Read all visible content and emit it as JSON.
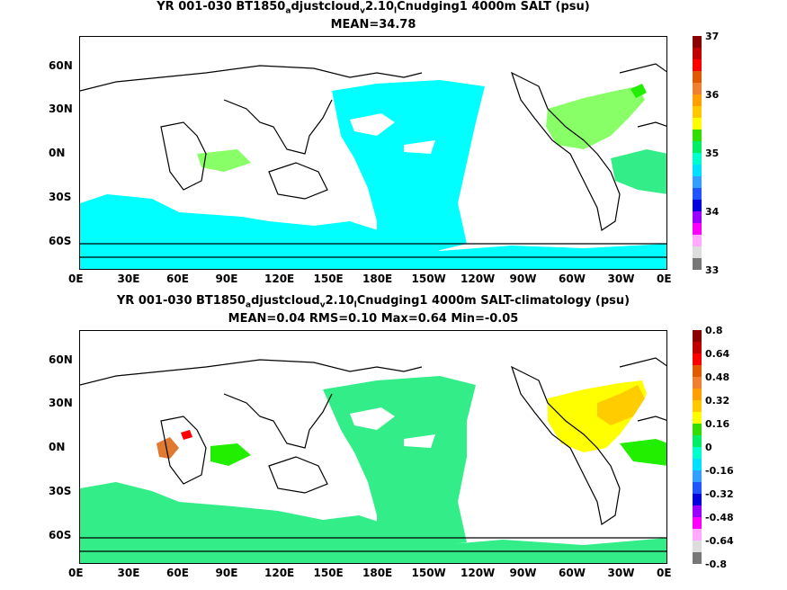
{
  "panels": [
    {
      "title_parts": [
        "YR 001-030 BT1850",
        "a",
        "djustcloud",
        "v",
        "2.10",
        "l",
        "Cnudging1 4000m SALT (psu)"
      ],
      "subtitle": "MEAN=34.78",
      "colorbar": {
        "labels": [
          "37",
          "36",
          "35",
          "34",
          "33"
        ],
        "colors": [
          "#8b0000",
          "#c00000",
          "#ff0000",
          "#e05a00",
          "#f08030",
          "#ffa000",
          "#ffc800",
          "#ffff00",
          "#33dd00",
          "#00ee66",
          "#00ffcc",
          "#00e0ff",
          "#33a0ff",
          "#2255ff",
          "#0000dd",
          "#9900ff",
          "#ff00ff",
          "#ffaaff",
          "#dddddd",
          "#777777"
        ]
      }
    },
    {
      "title_parts": [
        "YR 001-030 BT1850",
        "a",
        "djustcloud",
        "v",
        "2.10",
        "l",
        "Cnudging1 4000m SALT-climatology (psu)"
      ],
      "subtitle": "MEAN=0.04   RMS=0.10   Max=0.64   Min=-0.05",
      "colorbar": {
        "labels": [
          "0.8",
          "0.64",
          "0.48",
          "0.32",
          "0.16",
          "0",
          "-0.16",
          "-0.32",
          "-0.48",
          "-0.64",
          "-0.8"
        ],
        "colors": [
          "#8b0000",
          "#c00000",
          "#ff0000",
          "#e05a00",
          "#f08030",
          "#ffa000",
          "#ffc800",
          "#ffff00",
          "#33dd00",
          "#00ee66",
          "#00ffcc",
          "#00e0ff",
          "#33a0ff",
          "#2255ff",
          "#0000dd",
          "#9900ff",
          "#ff00ff",
          "#ffaaff",
          "#dddddd",
          "#777777"
        ]
      }
    }
  ],
  "axes": {
    "x_ticks": [
      "0E",
      "30E",
      "60E",
      "90E",
      "120E",
      "150E",
      "180E",
      "150W",
      "120W",
      "90W",
      "60W",
      "30W",
      "0E"
    ],
    "y_ticks": [
      "60N",
      "30N",
      "0N",
      "30S",
      "60S"
    ]
  },
  "colors": {
    "cyan": "#00ffff",
    "light_green": "#88ff66",
    "green_fill": "#33ee88",
    "bright_green": "#22ee00",
    "yellow": "#ffff00",
    "gold": "#ffcc00",
    "orange": "#e07a30",
    "red": "#ff0000",
    "coast": "#000000"
  }
}
